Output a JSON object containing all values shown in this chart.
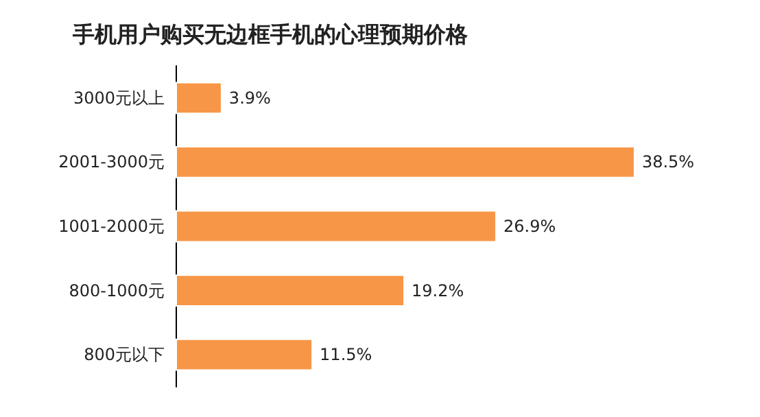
{
  "chart_data": {
    "type": "bar",
    "title": "手机用户购买无边框手机的心理预期价格",
    "orientation": "horizontal",
    "categories": [
      "3000元以上",
      "2001-3000元",
      "1001-2000元",
      "800-1000元",
      "800元以下"
    ],
    "values": [
      3.9,
      38.5,
      26.9,
      19.2,
      11.5
    ],
    "value_labels": [
      "3.9%",
      "38.5%",
      "26.9%",
      "19.2%",
      "11.5%"
    ],
    "color": "#f79646"
  }
}
